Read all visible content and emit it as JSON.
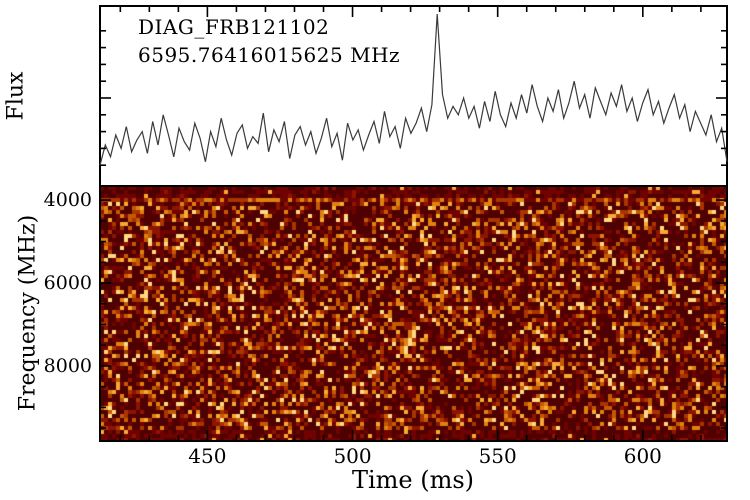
{
  "figure": {
    "annotations": {
      "line1": "DIAG_FRB121102",
      "line2": "6595.76416015625 MHz"
    },
    "axes": {
      "time_label": "Time (ms)",
      "flux_label": "Flux",
      "freq_label": "Frequency (MHz)"
    }
  },
  "chart_data": [
    {
      "type": "line",
      "title": "Summed flux time series (top panel)",
      "xlabel": "Time (ms)",
      "ylabel": "Flux",
      "x_range": [
        413,
        629
      ],
      "x_ticks": [
        450,
        500,
        550,
        600
      ],
      "x_minor_step": 10,
      "y_range": [
        0,
        1
      ],
      "y_ticks_unlabeled": true,
      "line_color": "#3a3a3a",
      "burst_time_ms": 530,
      "values": [
        0.1,
        0.22,
        0.15,
        0.28,
        0.2,
        0.33,
        0.18,
        0.25,
        0.3,
        0.17,
        0.36,
        0.22,
        0.4,
        0.28,
        0.15,
        0.32,
        0.24,
        0.19,
        0.35,
        0.26,
        0.12,
        0.3,
        0.21,
        0.38,
        0.25,
        0.16,
        0.29,
        0.34,
        0.2,
        0.27,
        0.23,
        0.41,
        0.18,
        0.31,
        0.24,
        0.36,
        0.14,
        0.28,
        0.33,
        0.22,
        0.3,
        0.17,
        0.26,
        0.38,
        0.21,
        0.29,
        0.13,
        0.35,
        0.25,
        0.31,
        0.19,
        0.28,
        0.36,
        0.23,
        0.42,
        0.27,
        0.33,
        0.2,
        0.38,
        0.29,
        0.35,
        0.44,
        0.3,
        0.46,
        1.0,
        0.52,
        0.38,
        0.45,
        0.4,
        0.5,
        0.38,
        0.45,
        0.32,
        0.48,
        0.36,
        0.54,
        0.4,
        0.33,
        0.47,
        0.38,
        0.52,
        0.41,
        0.58,
        0.45,
        0.36,
        0.5,
        0.42,
        0.55,
        0.38,
        0.47,
        0.6,
        0.44,
        0.52,
        0.38,
        0.56,
        0.48,
        0.4,
        0.53,
        0.45,
        0.58,
        0.42,
        0.5,
        0.36,
        0.47,
        0.55,
        0.4,
        0.48,
        0.35,
        0.44,
        0.52,
        0.38,
        0.46,
        0.3,
        0.42,
        0.35,
        0.28,
        0.4,
        0.24,
        0.32,
        0.12
      ]
    },
    {
      "type": "heatmap",
      "title": "Dynamic spectrum waterfall (bottom panel)",
      "xlabel": "Time (ms)",
      "ylabel": "Frequency (MHz)",
      "x_range": [
        413,
        629
      ],
      "y_range": [
        3660,
        9810
      ],
      "y_ticks": [
        4000,
        6000,
        8000
      ],
      "y_minor_step": 500,
      "colormap": "hot (dark red background, orange/yellow noise speckles)",
      "palette": [
        "#4f0000",
        "#700200",
        "#8d1500",
        "#a93500",
        "#c55a04",
        "#e0820f",
        "#f6ab33",
        "#ffd985"
      ],
      "noise_seed": 42,
      "grid_cells": [
        157,
        64
      ],
      "features": {
        "burst": {
          "time_ms": 519,
          "freq_mhz": 7300,
          "note": "faint bright diagonal dispersed streak"
        },
        "edge_bands": "saturated dark maroon bands at top and bottom frequency edges",
        "speckle_band_freq_mhz": 4000
      }
    }
  ]
}
